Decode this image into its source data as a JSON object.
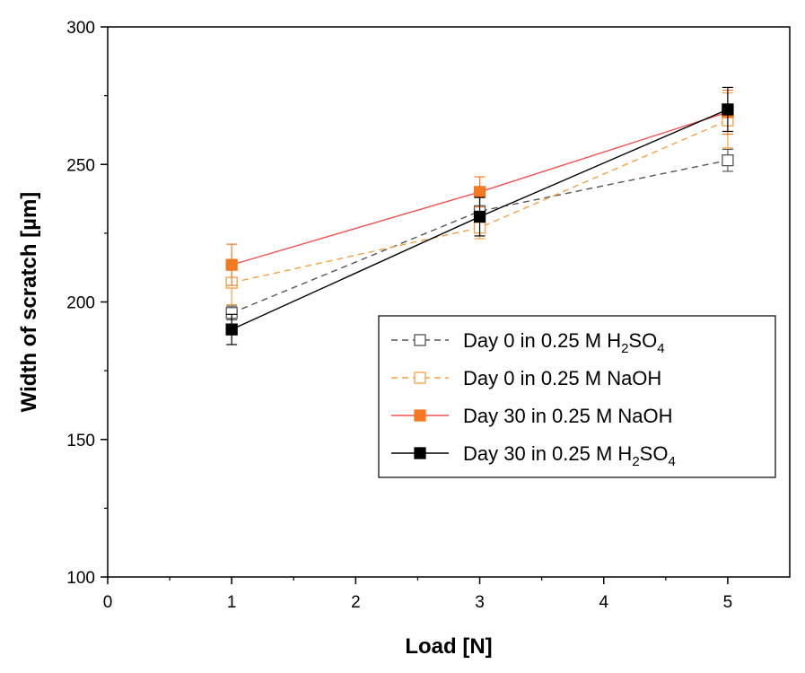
{
  "chart_data": {
    "type": "line",
    "title": "",
    "xlabel": "Load [N]",
    "ylabel": "Width of scratch [µm]",
    "xlim": [
      0,
      5.5
    ],
    "ylim": [
      100,
      300
    ],
    "xticks": [
      0,
      1,
      2,
      3,
      4,
      5
    ],
    "yticks": [
      100,
      150,
      200,
      250,
      300
    ],
    "grid": false,
    "legend_position": "right",
    "series": [
      {
        "name": "Day 0 in 0.25 M H2SO4",
        "label_prefix": "Day 0 in 0.25 M H",
        "label_sub": "2",
        "label_mid": "SO",
        "label_sub2": "4",
        "color": "#555555",
        "line": "dashed",
        "marker": "open-square",
        "x": [
          1,
          3,
          5
        ],
        "y": [
          196,
          233,
          251.5
        ],
        "err": [
          2.5,
          5,
          4
        ]
      },
      {
        "name": "Day 0 in 0.25 M NaOH",
        "label_prefix": "Day 0 in 0.25 M NaOH",
        "color": "#f5a040",
        "line": "dashed",
        "marker": "open-square",
        "x": [
          1,
          3,
          5
        ],
        "y": [
          207,
          227,
          266
        ],
        "err": [
          8,
          4,
          10
        ]
      },
      {
        "name": "Day 30 in 0.25 M NaOH",
        "label_prefix": "Day 30 in 0.25 M NaOH",
        "color": "#f47920",
        "line_color": "#f05050",
        "line": "solid",
        "marker": "filled-square",
        "x": [
          1,
          3,
          5
        ],
        "y": [
          213.5,
          240,
          269
        ],
        "err": [
          7.5,
          5.5,
          8
        ]
      },
      {
        "name": "Day 30 in 0.25 M H2SO4",
        "label_prefix": "Day 30 in 0.25 M H",
        "label_sub": "2",
        "label_mid": "SO",
        "label_sub2": "4",
        "color": "#000000",
        "line": "solid",
        "marker": "filled-square",
        "x": [
          1,
          3,
          5
        ],
        "y": [
          190,
          231,
          270
        ],
        "err": [
          5.5,
          7,
          8
        ]
      }
    ]
  }
}
